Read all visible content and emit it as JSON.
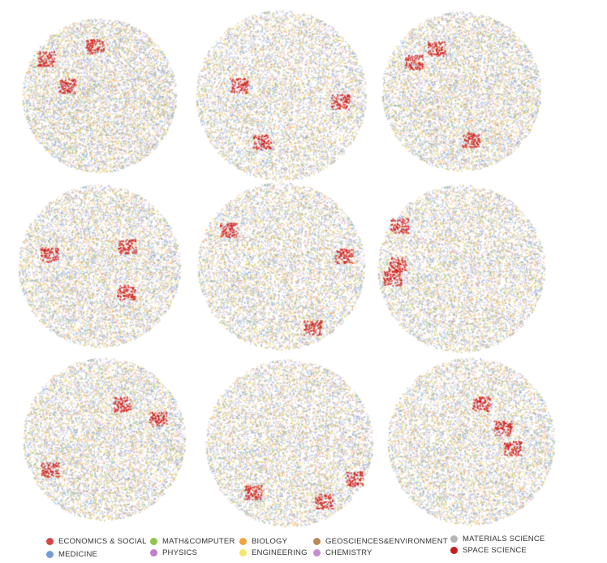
{
  "figure": {
    "panel_count": 9,
    "grid": "3x3",
    "background": "#ffffff"
  },
  "legend": {
    "items": [
      {
        "key": "econ",
        "label": "ECONOMICS & SOCIAL",
        "color": "#d9453f"
      },
      {
        "key": "medicine",
        "label": "MEDICINE",
        "color": "#6f9fd6"
      },
      {
        "key": "math",
        "label": "MATH&COMPUTER",
        "color": "#8fc64a"
      },
      {
        "key": "physics",
        "label": "PHYSICS",
        "color": "#c07ed0"
      },
      {
        "key": "biology",
        "label": "BIOLOGY",
        "color": "#f2a33a"
      },
      {
        "key": "engineering",
        "label": "ENGINEERING",
        "color": "#f4e76a"
      },
      {
        "key": "geo",
        "label": "GEOSCIENCES&ENVIRONMENT",
        "color": "#b98956"
      },
      {
        "key": "chemistry",
        "label": "CHEMISTRY",
        "color": "#c58dd0"
      },
      {
        "key": "materials",
        "label": "MATERIALS SCIENCE",
        "color": "#b5b5b5"
      },
      {
        "key": "space",
        "label": "SPACE SCIENCE",
        "color": "#c61c1c"
      }
    ]
  },
  "point_colors": {
    "medicine": "#7aa5db",
    "biology": "#f0b24a",
    "chemistry": "#f0c8e6",
    "engineering": "#f5ea84",
    "math": "#9ccf5a",
    "geo": "#c49a6c",
    "physics": "#c690d6",
    "space": "#d11f1f"
  }
}
